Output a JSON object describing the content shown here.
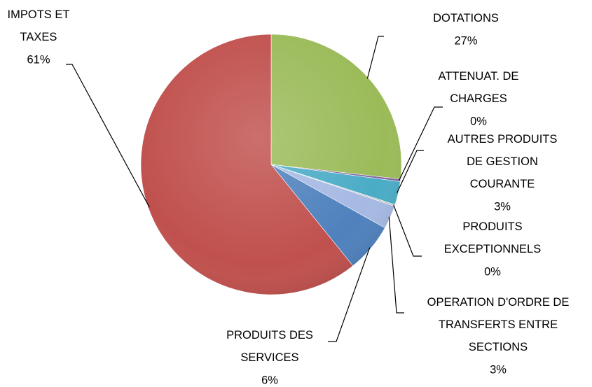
{
  "chart_data": {
    "type": "pie",
    "categories": [
      "DOTATIONS",
      "ATTENUAT. DE CHARGES",
      "AUTRES PRODUITS DE GESTION COURANTE",
      "PRODUITS EXCEPTIONNELS",
      "OPERATION D'ORDRE DE TRANSFERTS ENTRE SECTIONS",
      "PRODUITS DES SERVICES",
      "IMPOTS ET TAXES"
    ],
    "values": [
      26.8,
      0.3,
      2.9,
      0.2,
      2.9,
      6.1,
      60.8
    ],
    "value_labels": [
      "27%",
      "0%",
      "3%",
      "0%",
      "3%",
      "6%",
      "61%"
    ],
    "colors": [
      "#9bbb59",
      "#8064a2",
      "#4bacc6",
      "#c3c3c3",
      "#a6b9e3",
      "#4f81bd",
      "#c0504d"
    ]
  }
}
